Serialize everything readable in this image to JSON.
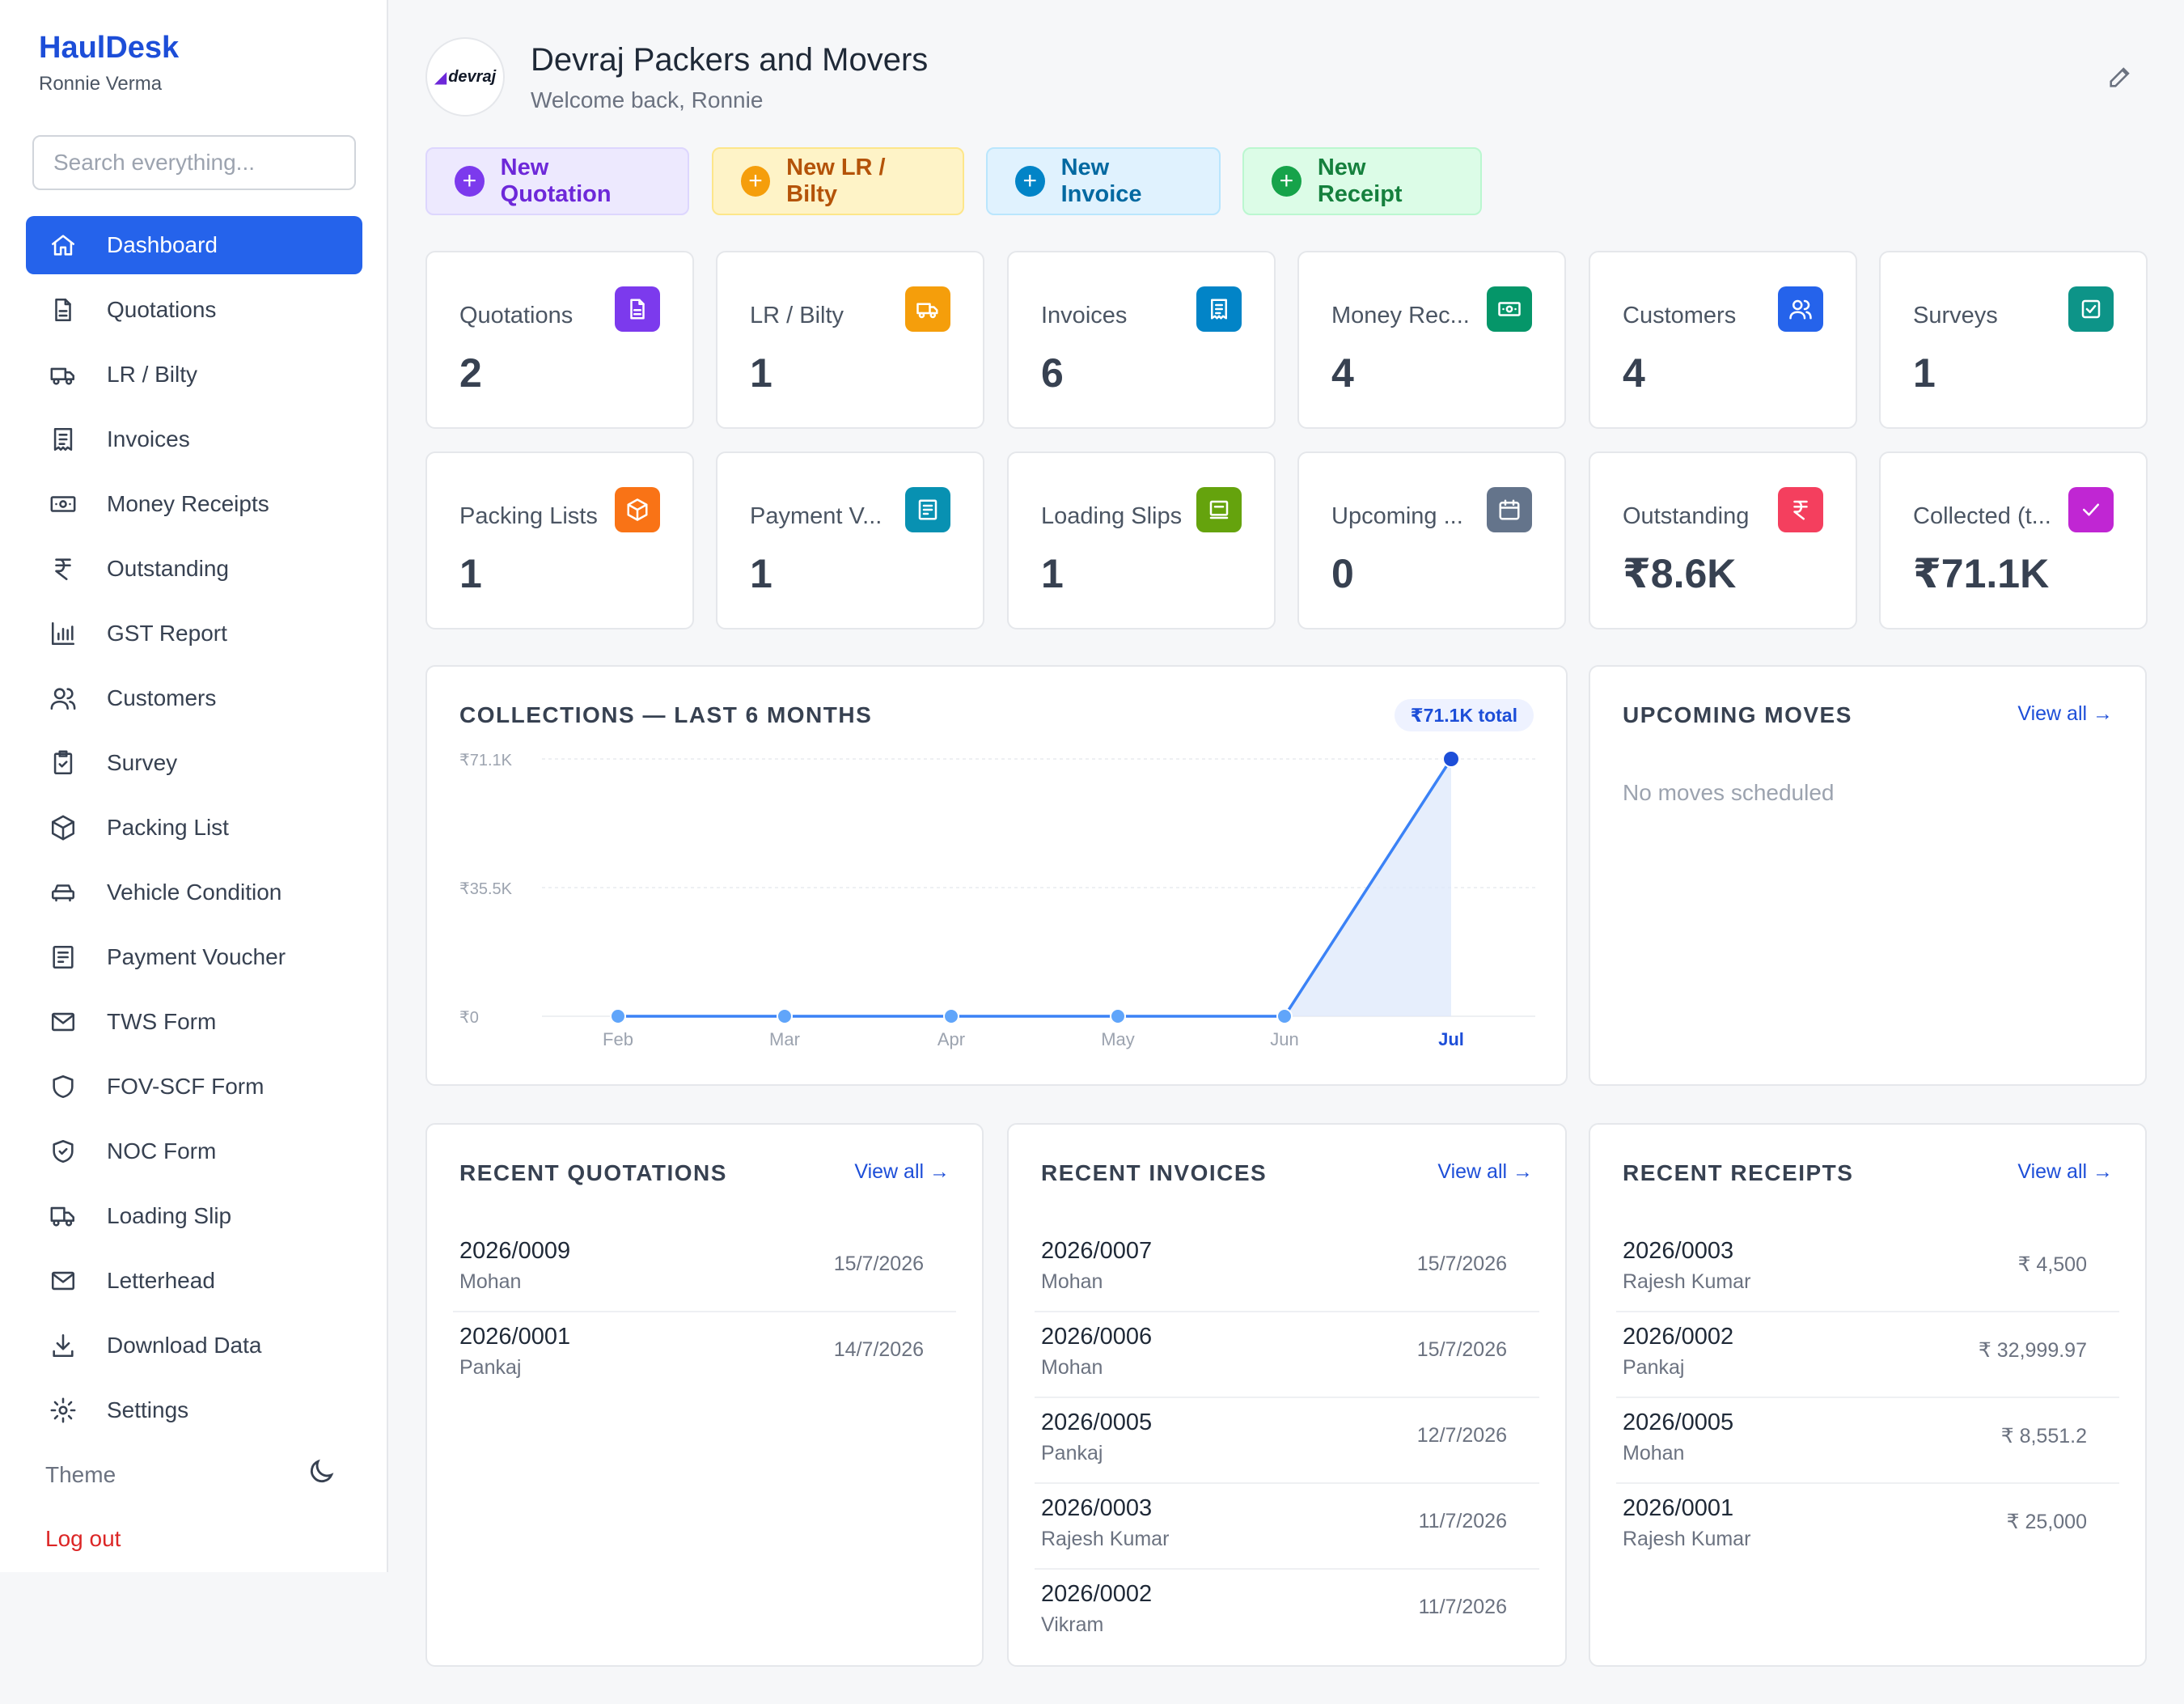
{
  "sidebar": {
    "brand": "HaulDesk",
    "user": "Ronnie Verma",
    "search_placeholder": "Search everything...",
    "items": [
      {
        "label": "Dashboard",
        "icon": "home-icon",
        "active": true
      },
      {
        "label": "Quotations",
        "icon": "file-icon"
      },
      {
        "label": "LR / Bilty",
        "icon": "truck-icon"
      },
      {
        "label": "Invoices",
        "icon": "receipt-icon"
      },
      {
        "label": "Money Receipts",
        "icon": "banknote-icon"
      },
      {
        "label": "Outstanding",
        "icon": "rupee-icon"
      },
      {
        "label": "GST Report",
        "icon": "bar-chart-icon"
      },
      {
        "label": "Customers",
        "icon": "users-icon"
      },
      {
        "label": "Survey",
        "icon": "clipboard-check-icon"
      },
      {
        "label": "Packing List",
        "icon": "box-icon"
      },
      {
        "label": "Vehicle Condition",
        "icon": "car-icon"
      },
      {
        "label": "Payment Voucher",
        "icon": "voucher-icon"
      },
      {
        "label": "TWS Form",
        "icon": "mail-icon"
      },
      {
        "label": "FOV-SCF Form",
        "icon": "shield-icon"
      },
      {
        "label": "NOC Form",
        "icon": "shield-check-icon"
      },
      {
        "label": "Loading Slip",
        "icon": "truck-loading-icon"
      },
      {
        "label": "Letterhead",
        "icon": "mail-icon"
      },
      {
        "label": "Download Data",
        "icon": "download-icon"
      },
      {
        "label": "Settings",
        "icon": "gear-icon"
      }
    ],
    "theme_label": "Theme",
    "logout_label": "Log out"
  },
  "header": {
    "logo_text": "devraj",
    "company": "Devraj Packers and Movers",
    "welcome": "Welcome back, Ronnie"
  },
  "actions": {
    "quotation": "New Quotation",
    "lr": "New LR / Bilty",
    "invoice": "New Invoice",
    "receipt": "New Receipt"
  },
  "stats": [
    {
      "label": "Quotations",
      "value": "2",
      "color": "#7c3aed",
      "icon": "file-icon"
    },
    {
      "label": "LR / Bilty",
      "value": "1",
      "color": "#f59e0b",
      "icon": "truck-icon"
    },
    {
      "label": "Invoices",
      "value": "6",
      "color": "#0284c7",
      "icon": "receipt-icon"
    },
    {
      "label": "Money Rec...",
      "value": "4",
      "color": "#059669",
      "icon": "banknote-icon"
    },
    {
      "label": "Customers",
      "value": "4",
      "color": "#2563eb",
      "icon": "users-icon"
    },
    {
      "label": "Surveys",
      "value": "1",
      "color": "#0d9488",
      "icon": "check-square-icon"
    },
    {
      "label": "Packing Lists",
      "value": "1",
      "color": "#f97316",
      "icon": "box-icon"
    },
    {
      "label": "Payment V...",
      "value": "1",
      "color": "#0891b2",
      "icon": "voucher-icon"
    },
    {
      "label": "Loading Slips",
      "value": "1",
      "color": "#65a30d",
      "icon": "slip-icon"
    },
    {
      "label": "Upcoming ...",
      "value": "0",
      "color": "#64748b",
      "icon": "calendar-icon"
    },
    {
      "label": "Outstanding",
      "value": "₹8.6K",
      "color": "#f43f5e",
      "icon": "rupee-icon"
    },
    {
      "label": "Collected (t...",
      "value": "₹71.1K",
      "color": "#c026d3",
      "icon": "check-icon"
    }
  ],
  "collections": {
    "title": "COLLECTIONS — LAST 6 MONTHS",
    "total_pill": "₹71.1K total"
  },
  "chart_data": {
    "type": "area",
    "title": "COLLECTIONS — LAST 6 MONTHS",
    "categories": [
      "Feb",
      "Mar",
      "Apr",
      "May",
      "Jun",
      "Jul"
    ],
    "values": [
      0,
      0,
      0,
      0,
      0,
      71100
    ],
    "y_ticks": [
      "₹0",
      "₹35.5K",
      "₹71.1K"
    ],
    "ylim": [
      0,
      71100
    ],
    "highlight_category": "Jul",
    "grid": true,
    "color": "#2563eb"
  },
  "upcoming": {
    "title": "UPCOMING MOVES",
    "view_all": "View all →",
    "empty": "No moves scheduled"
  },
  "recent_quotations": {
    "title": "RECENT QUOTATIONS",
    "view_all": "View all →",
    "rows": [
      {
        "num": "2026/0009",
        "who": "Mohan",
        "right": "15/7/2026"
      },
      {
        "num": "2026/0001",
        "who": "Pankaj",
        "right": "14/7/2026"
      }
    ]
  },
  "recent_invoices": {
    "title": "RECENT INVOICES",
    "view_all": "View all →",
    "rows": [
      {
        "num": "2026/0007",
        "who": "Mohan",
        "right": "15/7/2026"
      },
      {
        "num": "2026/0006",
        "who": "Mohan",
        "right": "15/7/2026"
      },
      {
        "num": "2026/0005",
        "who": "Pankaj",
        "right": "12/7/2026"
      },
      {
        "num": "2026/0003",
        "who": "Rajesh Kumar",
        "right": "11/7/2026"
      },
      {
        "num": "2026/0002",
        "who": "Vikram",
        "right": "11/7/2026"
      }
    ]
  },
  "recent_receipts": {
    "title": "RECENT RECEIPTS",
    "view_all": "View all →",
    "rows": [
      {
        "num": "2026/0003",
        "who": "Rajesh Kumar",
        "right": "₹ 4,500"
      },
      {
        "num": "2026/0002",
        "who": "Pankaj",
        "right": "₹ 32,999.97"
      },
      {
        "num": "2026/0005",
        "who": "Mohan",
        "right": "₹ 8,551.2"
      },
      {
        "num": "2026/0001",
        "who": "Rajesh Kumar",
        "right": "₹ 25,000"
      }
    ]
  }
}
